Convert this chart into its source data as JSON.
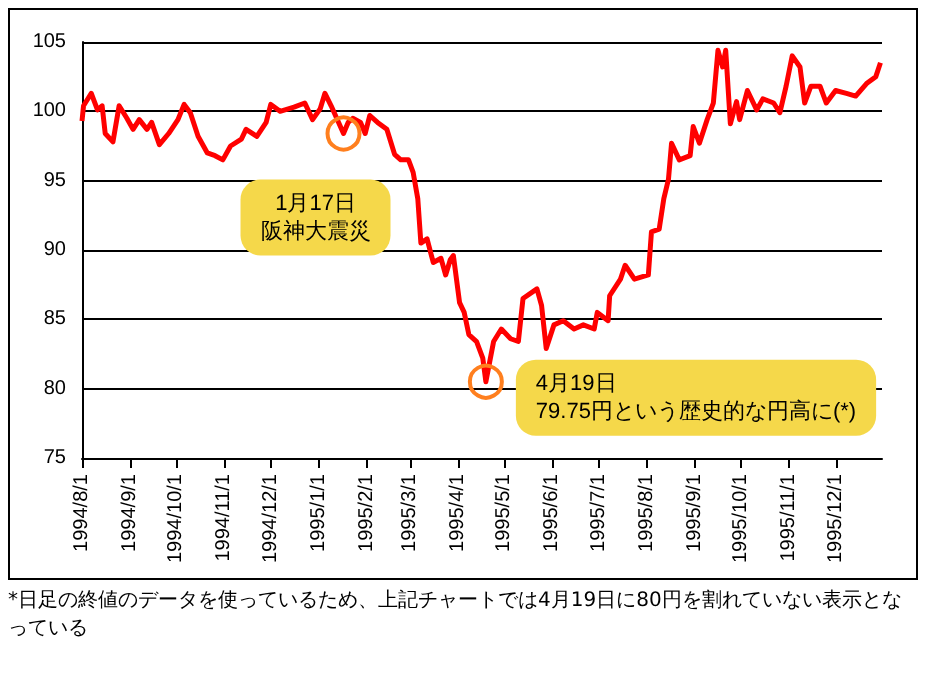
{
  "chart_data": {
    "type": "line",
    "x": [
      "1994-08-01",
      "1994-08-02",
      "1994-08-07",
      "1994-08-11",
      "1994-08-14",
      "1994-08-16",
      "1994-08-21",
      "1994-08-25",
      "1994-08-30",
      "1994-09-03",
      "1994-09-07",
      "1994-09-12",
      "1994-09-15",
      "1994-09-20",
      "1994-09-26",
      "1994-10-02",
      "1994-10-06",
      "1994-10-10",
      "1994-10-15",
      "1994-10-21",
      "1994-10-26",
      "1994-10-31",
      "1994-11-05",
      "1994-11-12",
      "1994-11-15",
      "1994-11-22",
      "1994-11-28",
      "1994-12-01",
      "1994-12-07",
      "1994-12-16",
      "1994-12-23",
      "1994-12-28",
      "1995-01-02",
      "1995-01-05",
      "1995-01-09",
      "1995-01-17",
      "1995-01-20",
      "1995-01-23",
      "1995-01-28",
      "1995-01-31",
      "1995-02-03",
      "1995-02-08",
      "1995-02-14",
      "1995-02-19",
      "1995-02-23",
      "1995-02-28",
      "1995-03-03",
      "1995-03-06",
      "1995-03-08",
      "1995-03-12",
      "1995-03-16",
      "1995-03-21",
      "1995-03-24",
      "1995-03-27",
      "1995-03-29",
      "1995-04-02",
      "1995-04-05",
      "1995-04-08",
      "1995-04-13",
      "1995-04-17",
      "1995-04-19",
      "1995-04-24",
      "1995-04-29",
      "1995-05-05",
      "1995-05-10",
      "1995-05-13",
      "1995-05-22",
      "1995-05-25",
      "1995-05-28",
      "1995-06-02",
      "1995-06-08",
      "1995-06-15",
      "1995-06-21",
      "1995-06-28",
      "1995-06-30",
      "1995-07-07",
      "1995-07-08",
      "1995-07-15",
      "1995-07-18",
      "1995-07-24",
      "1995-08-02",
      "1995-08-04",
      "1995-08-09",
      "1995-08-12",
      "1995-08-15",
      "1995-08-17",
      "1995-08-22",
      "1995-08-29",
      "1995-08-31",
      "1995-09-04",
      "1995-09-09",
      "1995-09-13",
      "1995-09-16",
      "1995-09-19",
      "1995-09-21",
      "1995-09-24",
      "1995-09-28",
      "1995-09-30",
      "1995-10-05",
      "1995-10-11",
      "1995-10-15",
      "1995-10-22",
      "1995-10-26",
      "1995-10-30",
      "1995-11-03",
      "1995-11-08",
      "1995-11-11",
      "1995-11-15",
      "1995-11-21",
      "1995-11-25",
      "1995-12-01",
      "1995-12-08",
      "1995-12-14",
      "1995-12-21",
      "1995-12-27",
      "1995-12-30"
    ],
    "series": [
      {
        "color": "#ff0000",
        "values": [
          99.3,
          100.4,
          101.3,
          100.1,
          100.4,
          98.4,
          97.8,
          100.4,
          99.5,
          98.7,
          99.4,
          98.7,
          99.2,
          97.6,
          98.4,
          99.4,
          100.5,
          99.9,
          98.2,
          97.0,
          96.8,
          96.5,
          97.5,
          98.0,
          98.7,
          98.2,
          99.2,
          100.5,
          100.0,
          100.3,
          100.6,
          99.4,
          100.2,
          101.3,
          100.4,
          98.4,
          99.2,
          99.5,
          99.2,
          98.4,
          99.7,
          99.2,
          98.7,
          96.9,
          96.5,
          96.5,
          95.6,
          93.7,
          90.5,
          90.8,
          89.1,
          89.4,
          88.2,
          89.3,
          89.6,
          86.2,
          85.5,
          83.9,
          83.4,
          82.2,
          80.5,
          83.4,
          84.3,
          83.6,
          83.4,
          86.5,
          87.2,
          86.0,
          82.9,
          84.6,
          84.9,
          84.3,
          84.6,
          84.3,
          85.5,
          84.9,
          86.7,
          87.9,
          88.9,
          87.9,
          88.2,
          91.3,
          91.5,
          93.7,
          95.1,
          97.7,
          96.5,
          96.8,
          98.9,
          97.7,
          99.4,
          100.6,
          104.4,
          103.2,
          104.4,
          99.1,
          100.7,
          99.4,
          101.5,
          100.1,
          100.9,
          100.6,
          99.9,
          101.8,
          104.0,
          103.2,
          100.6,
          101.8,
          101.8,
          100.6,
          101.5,
          101.3,
          101.1,
          102.0,
          102.5,
          103.5
        ]
      }
    ],
    "xlim": [
      "1994-08-01",
      "1995-12-31"
    ],
    "xticks": [
      {
        "value": "1994-08-01",
        "label": "1994/8/1"
      },
      {
        "value": "1994-09-01",
        "label": "1994/9/1"
      },
      {
        "value": "1994-10-01",
        "label": "1994/10/1"
      },
      {
        "value": "1994-11-01",
        "label": "1994/11/1"
      },
      {
        "value": "1994-12-01",
        "label": "1994/12/1"
      },
      {
        "value": "1995-01-01",
        "label": "1995/1/1"
      },
      {
        "value": "1995-02-01",
        "label": "1995/2/1"
      },
      {
        "value": "1995-03-01",
        "label": "1995/3/1"
      },
      {
        "value": "1995-04-01",
        "label": "1995/4/1"
      },
      {
        "value": "1995-05-01",
        "label": "1995/5/1"
      },
      {
        "value": "1995-06-01",
        "label": "1995/6/1"
      },
      {
        "value": "1995-07-01",
        "label": "1995/7/1"
      },
      {
        "value": "1995-08-01",
        "label": "1995/8/1"
      },
      {
        "value": "1995-09-01",
        "label": "1995/9/1"
      },
      {
        "value": "1995-10-01",
        "label": "1995/10/1"
      },
      {
        "value": "1995-11-01",
        "label": "1995/11/1"
      },
      {
        "value": "1995-12-01",
        "label": "1995/12/1"
      }
    ],
    "ylim": [
      75,
      105
    ],
    "yticks": [
      75,
      80,
      85,
      90,
      95,
      100,
      105
    ],
    "grid": "y",
    "marker": "none",
    "line_style": "solid",
    "annotations": [
      {
        "text": "1月17日",
        "x": "1995-01-17",
        "y": 98.4
      },
      "阪神大震災",
      {
        "text": "4月19日",
        "x": "1995-04-19",
        "y": 80.5
      },
      "79.75円という歴史的な円高に(*)",
      "*日足の終値のデータを使っているため、上記チャートでは4月19日に80円を割れていない表示となっている"
    ]
  }
}
